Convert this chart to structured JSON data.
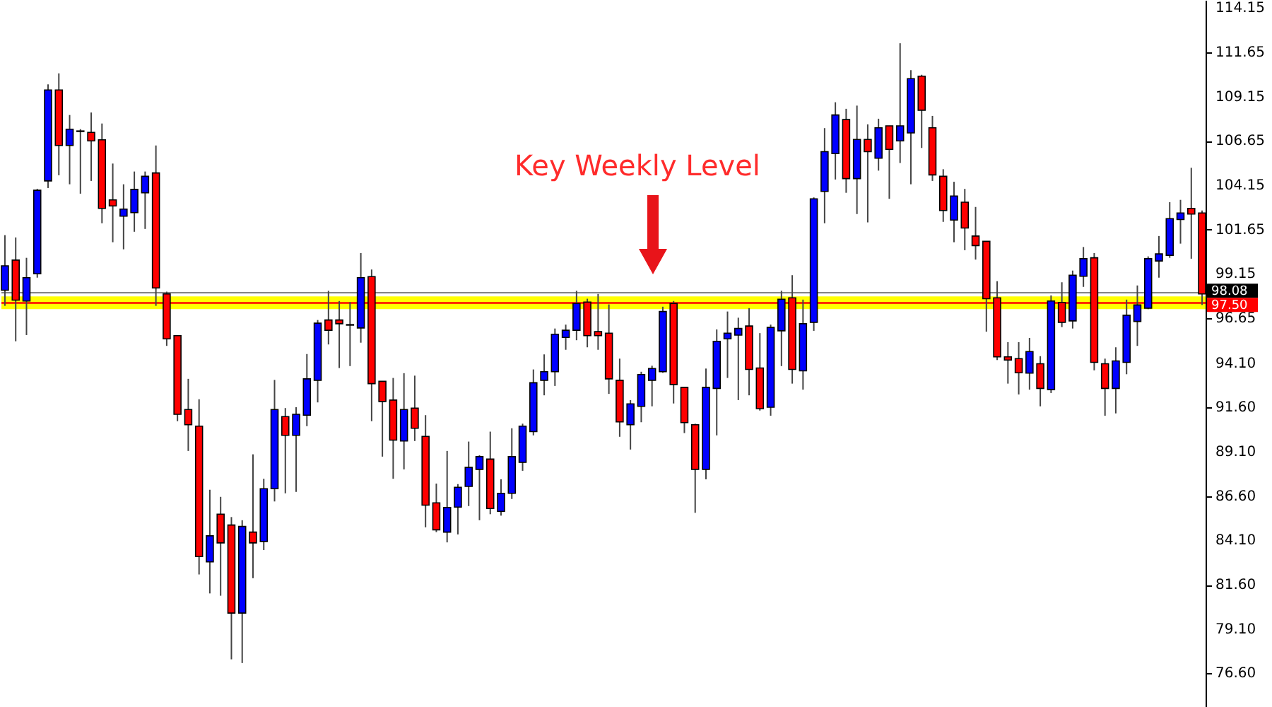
{
  "chart_data": {
    "type": "candlestick",
    "categories": [
      null,
      null,
      null,
      null,
      null,
      null,
      null,
      null,
      null,
      null,
      null,
      null,
      null,
      null,
      null,
      null,
      null,
      null,
      null,
      null,
      null,
      null,
      null,
      null,
      null,
      null,
      null,
      null,
      null,
      null,
      null,
      null,
      null,
      null,
      null,
      null,
      null,
      null,
      null,
      null,
      null,
      null,
      null,
      null,
      null,
      null,
      null,
      null,
      null,
      null,
      null,
      null,
      null,
      null,
      null,
      null,
      null,
      null,
      null,
      null,
      null,
      null,
      null,
      null,
      null,
      null,
      null,
      null,
      null,
      null,
      null,
      null,
      null,
      null,
      null,
      null,
      null,
      null,
      null,
      null,
      null,
      null,
      null,
      null,
      null,
      null,
      null,
      null,
      null,
      null,
      null,
      null,
      null,
      null,
      null,
      null,
      null,
      null,
      null,
      null,
      null,
      null,
      null,
      null,
      null,
      null,
      null,
      null,
      null,
      null,
      null,
      null
    ],
    "ohlc": [
      [
        98.22,
        101.33,
        97.34,
        99.6
      ],
      [
        99.92,
        101.2,
        95.34,
        97.66
      ],
      [
        97.61,
        100.05,
        95.69,
        98.93
      ],
      [
        99.15,
        103.94,
        98.93,
        103.86
      ],
      [
        104.39,
        109.84,
        103.99,
        109.52
      ],
      [
        109.52,
        110.46,
        104.71,
        106.39
      ],
      [
        106.39,
        108.11,
        104.2,
        107.31
      ],
      [
        107.18,
        107.31,
        103.67,
        107.21
      ],
      [
        107.13,
        108.25,
        104.39,
        106.65
      ],
      [
        106.71,
        107.63,
        102.0,
        102.84
      ],
      [
        103.32,
        105.37,
        100.93,
        102.98
      ],
      [
        102.4,
        104.2,
        100.53,
        102.8
      ],
      [
        102.6,
        104.92,
        101.52,
        103.91
      ],
      [
        103.72,
        104.92,
        101.68,
        104.65
      ],
      [
        104.84,
        106.39,
        97.34,
        98.35
      ],
      [
        98.01,
        98.14,
        95.08,
        95.48
      ],
      [
        95.66,
        95.66,
        90.83,
        91.22
      ],
      [
        91.49,
        93.22,
        89.15,
        90.63
      ],
      [
        90.55,
        92.07,
        82.18,
        83.19
      ],
      [
        82.89,
        86.96,
        81.11,
        84.36
      ],
      [
        85.58,
        86.56,
        80.98,
        83.96
      ],
      [
        84.97,
        85.42,
        77.39,
        80.0
      ],
      [
        80.0,
        85.24,
        77.18,
        84.89
      ],
      [
        84.57,
        88.96,
        81.97,
        83.96
      ],
      [
        84.04,
        87.58,
        83.56,
        87.02
      ],
      [
        87.02,
        93.16,
        86.3,
        91.49
      ],
      [
        91.09,
        91.57,
        86.76,
        90.03
      ],
      [
        90.03,
        91.62,
        86.84,
        91.22
      ],
      [
        91.17,
        94.62,
        90.55,
        93.22
      ],
      [
        93.14,
        96.54,
        91.89,
        96.36
      ],
      [
        96.54,
        98.19,
        95.16,
        95.96
      ],
      [
        96.54,
        97.61,
        93.83,
        96.33
      ],
      [
        96.25,
        97.55,
        93.94,
        96.28
      ],
      [
        96.09,
        100.32,
        95.26,
        98.93
      ],
      [
        98.99,
        99.39,
        90.83,
        92.95
      ],
      [
        93.08,
        93.08,
        88.83,
        91.94
      ],
      [
        92.02,
        93.27,
        87.58,
        89.76
      ],
      [
        89.71,
        93.54,
        88.11,
        91.49
      ],
      [
        91.57,
        93.4,
        89.71,
        90.43
      ],
      [
        89.97,
        91.17,
        84.84,
        86.09
      ],
      [
        86.22,
        87.31,
        84.57,
        84.7
      ],
      [
        84.57,
        89.15,
        83.99,
        85.96
      ],
      [
        85.98,
        87.28,
        84.44,
        87.1
      ],
      [
        87.15,
        89.68,
        86.04,
        88.22
      ],
      [
        88.11,
        88.91,
        85.24,
        88.83
      ],
      [
        88.69,
        90.24,
        85.58,
        85.9
      ],
      [
        85.74,
        87.55,
        85.5,
        86.76
      ],
      [
        86.76,
        90.43,
        86.44,
        88.83
      ],
      [
        88.51,
        90.69,
        88.03,
        90.55
      ],
      [
        90.24,
        93.75,
        90.03,
        93.0
      ],
      [
        93.14,
        94.6,
        92.29,
        93.62
      ],
      [
        93.62,
        96.06,
        92.82,
        95.74
      ],
      [
        95.56,
        96.28,
        94.86,
        95.96
      ],
      [
        95.96,
        98.19,
        95.4,
        97.47
      ],
      [
        97.55,
        97.74,
        95.0,
        95.66
      ],
      [
        95.88,
        98.01,
        94.86,
        95.66
      ],
      [
        95.8,
        97.42,
        92.37,
        93.22
      ],
      [
        93.14,
        94.36,
        89.95,
        90.79
      ],
      [
        90.63,
        92.02,
        89.23,
        91.81
      ],
      [
        91.67,
        93.62,
        90.77,
        93.46
      ],
      [
        93.14,
        93.96,
        91.67,
        93.8
      ],
      [
        93.62,
        97.29,
        93.56,
        97.02
      ],
      [
        97.47,
        97.61,
        91.83,
        92.9
      ],
      [
        92.74,
        92.74,
        90.16,
        90.75
      ],
      [
        90.63,
        90.69,
        85.66,
        88.11
      ],
      [
        88.11,
        93.8,
        87.55,
        92.74
      ],
      [
        92.68,
        96.01,
        90.03,
        95.34
      ],
      [
        95.48,
        97.02,
        93.27,
        95.8
      ],
      [
        95.69,
        96.67,
        92.02,
        96.06
      ],
      [
        96.2,
        97.21,
        92.29,
        93.75
      ],
      [
        93.83,
        95.8,
        91.43,
        91.54
      ],
      [
        91.62,
        96.28,
        91.14,
        96.12
      ],
      [
        95.93,
        98.19,
        93.94,
        97.71
      ],
      [
        97.79,
        99.07,
        92.95,
        93.75
      ],
      [
        93.67,
        97.69,
        92.61,
        96.33
      ],
      [
        96.41,
        103.46,
        95.93,
        103.38
      ],
      [
        103.8,
        107.37,
        102.0,
        106.04
      ],
      [
        105.93,
        108.83,
        104.47,
        108.11
      ],
      [
        107.85,
        108.46,
        103.72,
        104.52
      ],
      [
        104.52,
        108.64,
        102.52,
        106.73
      ],
      [
        106.73,
        107.58,
        102.05,
        106.04
      ],
      [
        105.67,
        107.9,
        104.97,
        107.39
      ],
      [
        107.5,
        107.5,
        103.38,
        106.17
      ],
      [
        106.65,
        112.16,
        105.4,
        107.5
      ],
      [
        107.1,
        110.64,
        104.2,
        110.16
      ],
      [
        110.3,
        110.38,
        106.25,
        108.38
      ],
      [
        107.39,
        108.06,
        104.39,
        104.73
      ],
      [
        104.65,
        105.05,
        102.08,
        102.72
      ],
      [
        102.18,
        104.34,
        100.93,
        103.54
      ],
      [
        103.19,
        103.94,
        100.48,
        101.73
      ],
      [
        101.28,
        102.92,
        99.95,
        100.74
      ],
      [
        100.98,
        100.98,
        95.88,
        97.74
      ],
      [
        97.79,
        98.73,
        94.28,
        94.46
      ],
      [
        94.46,
        95.29,
        92.95,
        94.28
      ],
      [
        94.36,
        95.29,
        92.34,
        93.56
      ],
      [
        93.54,
        95.53,
        92.61,
        94.76
      ],
      [
        94.07,
        94.5,
        91.67,
        92.68
      ],
      [
        92.61,
        97.93,
        92.42,
        97.61
      ],
      [
        97.53,
        98.67,
        96.14,
        96.41
      ],
      [
        96.49,
        99.33,
        96.06,
        99.07
      ],
      [
        99.01,
        100.66,
        98.41,
        100.0
      ],
      [
        100.05,
        100.32,
        93.7,
        94.15
      ],
      [
        94.07,
        94.36,
        91.14,
        92.68
      ],
      [
        92.68,
        95.0,
        91.27,
        94.23
      ],
      [
        94.15,
        97.69,
        93.48,
        96.81
      ],
      [
        96.46,
        98.49,
        95.08,
        97.39
      ],
      [
        97.21,
        100.13,
        97.15,
        100.0
      ],
      [
        99.87,
        101.28,
        98.93,
        100.27
      ],
      [
        100.19,
        103.19,
        100.05,
        102.26
      ],
      [
        102.21,
        103.32,
        100.85,
        102.58
      ],
      [
        102.84,
        105.13,
        100.0,
        102.52
      ],
      [
        102.58,
        102.72,
        97.39,
        98.01
      ]
    ],
    "ylim": [
      74.7,
      114.6
    ],
    "yticks": [
      114.15,
      111.65,
      109.15,
      106.65,
      104.15,
      101.65,
      99.15,
      96.65,
      {
        "value": 94.1,
        "label": "94.10"
      },
      {
        "value": 91.6,
        "label": "91.60"
      },
      {
        "value": 89.1,
        "label": "89.10"
      },
      {
        "value": 86.6,
        "label": "86.60"
      },
      {
        "value": 84.1,
        "label": "84.10"
      },
      {
        "value": 81.6,
        "label": "81.60"
      },
      {
        "value": 79.1,
        "label": "79.10"
      },
      {
        "value": 76.6,
        "label": "76.60"
      }
    ],
    "bands": [
      {
        "axis": "y",
        "from": 97.15,
        "to": 97.87,
        "color": "#ffff00"
      }
    ],
    "ref_lines": [
      {
        "axis": "y",
        "value": 98.08,
        "label": "98.08",
        "color": "#000000"
      },
      {
        "axis": "y",
        "value": 97.5,
        "label": "97.50",
        "color": "#ff0000"
      }
    ],
    "annotations": [
      "Key Weekly Level"
    ]
  }
}
